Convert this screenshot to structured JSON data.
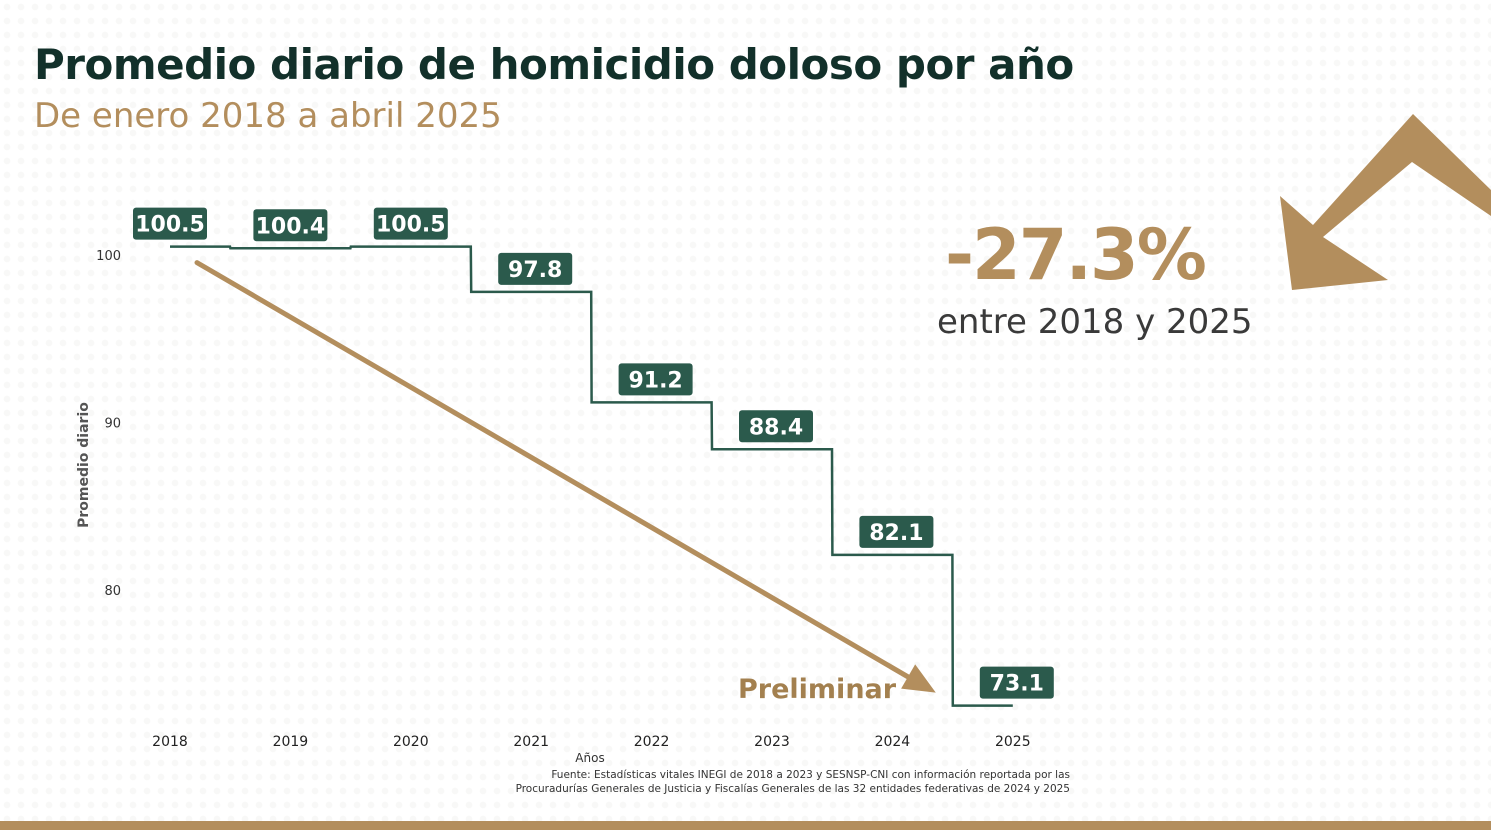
{
  "header": {
    "title": "Promedio diario de homicidio doloso por año",
    "subtitle": "De enero 2018 a abril 2025"
  },
  "highlight": {
    "value": "-27.3%",
    "caption": "entre 2018 y 2025",
    "icon": "down-arrow-icon"
  },
  "annotation": "Preliminar",
  "source": {
    "line1": "Fuente: Estadísticas vitales INEGI de 2018 a 2023 y SESNSP-CNI con información reportada por las",
    "line2": "Procuradurías Generales de Justicia y Fiscalías Generales de las 32 entidades federativas de 2024 y 2025"
  },
  "colors": {
    "series": "#2b5a4c",
    "trend": "#b38e5d",
    "title": "#12302a",
    "accent": "#b38e5d"
  },
  "chart_data": {
    "type": "line",
    "step": true,
    "categories": [
      "2018",
      "2019",
      "2020",
      "2021",
      "2022",
      "2023",
      "2024",
      "2025"
    ],
    "values": [
      100.5,
      100.4,
      100.5,
      97.8,
      91.2,
      88.4,
      82.1,
      73.1
    ],
    "labels": [
      "100.5",
      "100.4",
      "100.5",
      "97.8",
      "91.2",
      "88.4",
      "82.1",
      "73.1"
    ],
    "xlabel": "Años",
    "ylabel": "Promedio diario",
    "yticks": [
      "80",
      "90",
      "100"
    ],
    "ytick_values": [
      80,
      90,
      100
    ],
    "ylim": [
      73,
      100.9
    ],
    "trend": {
      "from": "2018",
      "to": "2025"
    }
  }
}
